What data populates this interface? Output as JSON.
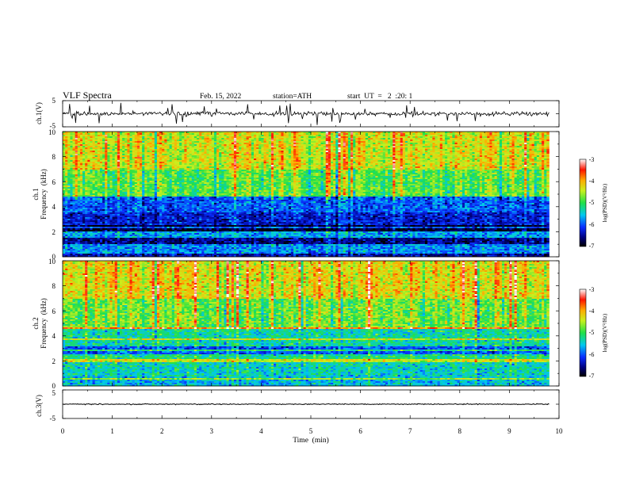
{
  "chart_data": {
    "type": "heatmap",
    "header": {
      "title": "VLF  Spectra",
      "date": "Feb. 15, 2022",
      "station": "station=ATH",
      "start": "start  UT  =   2  :20: 1"
    },
    "x": {
      "label": "Time  (min)",
      "range": [
        0,
        10
      ],
      "ticks": [
        "0",
        "1",
        "2",
        "3",
        "4",
        "5",
        "6",
        "7",
        "8",
        "9",
        "10"
      ],
      "data_end": 9.8
    },
    "panels": [
      {
        "kind": "waveform",
        "ylabel": "ch.1(V)",
        "ylim": [
          -5,
          5
        ],
        "yticks": [
          "5",
          "-5"
        ],
        "mean": 0,
        "noise_amplitude": 1.2
      },
      {
        "kind": "spectrogram",
        "ylabel_lines": [
          "ch.1",
          "Frequency  (kHz)"
        ],
        "ylim": [
          0,
          10
        ],
        "yticks": [
          "10",
          "8",
          "6",
          "4",
          "2",
          "0"
        ],
        "colorbar": {
          "label": "log(PSD)(V²/Hz)",
          "range": [
            -7,
            -3
          ],
          "ticks": [
            "-3",
            "-4",
            "-5",
            "-6",
            "-7"
          ]
        },
        "bands_khz": [
          {
            "from": 0,
            "to": 0.3,
            "level": -6.5
          },
          {
            "from": 0.3,
            "to": 1.0,
            "level": -5.8
          },
          {
            "from": 1.0,
            "to": 2.0,
            "level": -6.6
          },
          {
            "from": 2.0,
            "to": 2.5,
            "level": -6.9
          },
          {
            "from": 2.5,
            "to": 3.5,
            "level": -6.3
          },
          {
            "from": 3.5,
            "to": 4.8,
            "level": -6.0
          },
          {
            "from": 4.8,
            "to": 7.0,
            "level": -4.9
          },
          {
            "from": 7.0,
            "to": 10.0,
            "level": -4.4
          }
        ]
      },
      {
        "kind": "spectrogram",
        "ylabel_lines": [
          "ch.2",
          "Frequency  (kHz)"
        ],
        "ylim": [
          0,
          10
        ],
        "yticks": [
          "10",
          "8",
          "6",
          "4",
          "2",
          "0"
        ],
        "colorbar": {
          "label": "log(PSD)(V²/Hz)",
          "range": [
            -7,
            -3
          ],
          "ticks": [
            "-3",
            "-4",
            "-5",
            "-6",
            "-7"
          ]
        },
        "bands_khz": [
          {
            "from": 0,
            "to": 0.8,
            "level": -5.6
          },
          {
            "from": 0.8,
            "to": 2.0,
            "level": -5.4
          },
          {
            "from": 2.0,
            "to": 2.5,
            "level": -5.2
          },
          {
            "from": 2.5,
            "to": 3.2,
            "level": -6.0
          },
          {
            "from": 3.2,
            "to": 4.6,
            "level": -5.3
          },
          {
            "from": 4.6,
            "to": 7.0,
            "level": -4.8
          },
          {
            "from": 7.0,
            "to": 10.0,
            "level": -4.3
          }
        ]
      },
      {
        "kind": "waveform",
        "ylabel": "ch.3(V)",
        "ylim": [
          -5,
          5
        ],
        "yticks": [
          "5",
          "-5"
        ],
        "mean": 0,
        "noise_amplitude": 0.25
      }
    ]
  }
}
